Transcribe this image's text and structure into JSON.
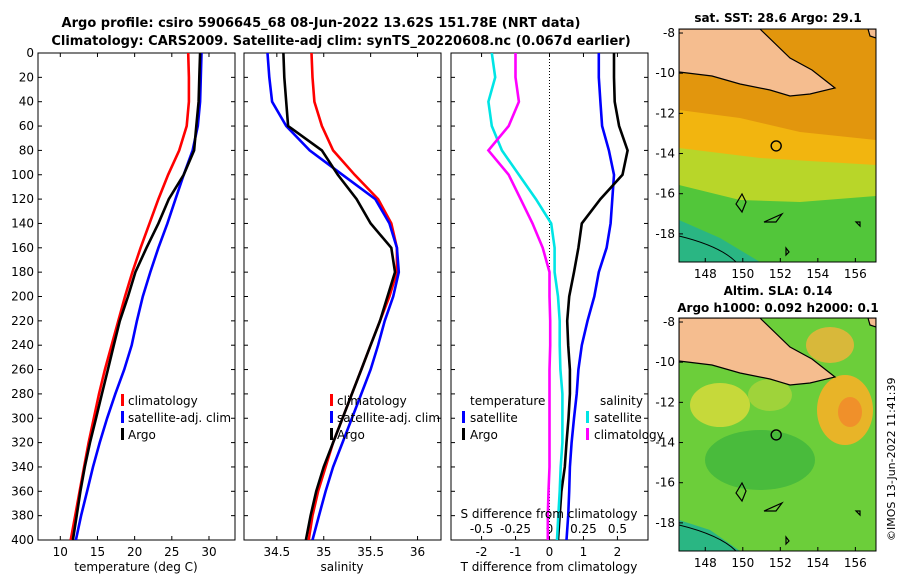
{
  "title": {
    "line1": "Argo profile: csiro 5906645_68 08-Jun-2022 13.62S 151.78E (NRT data)",
    "line2": "Climatology: CARS2009. Satellite-adj clim: synTS_20220608.nc (0.067d earlier)"
  },
  "watermark": "©IMOS 13-Jun-2022 11:41:39",
  "colors": {
    "climatology": "#ff0000",
    "satellite": "#0000ff",
    "argo": "#000000",
    "s_sat": "#00e5e5",
    "s_clim": "#ff00ff"
  },
  "chart_data": [
    {
      "type": "line",
      "name": "temperature",
      "xlabel": "temperature (deg C)",
      "ylabel": "",
      "xlim": [
        7,
        33.5
      ],
      "ylim": [
        0,
        400
      ],
      "xticks": [
        10,
        15,
        20,
        25,
        30
      ],
      "yticks": [
        0,
        20,
        40,
        60,
        80,
        100,
        120,
        140,
        160,
        180,
        200,
        220,
        240,
        260,
        280,
        300,
        320,
        340,
        360,
        380,
        400
      ],
      "legend": [
        "climatology",
        "satellite-adj. clim",
        "Argo"
      ],
      "series": [
        {
          "name": "climatology",
          "color": "#ff0000",
          "points": [
            [
              27.2,
              0
            ],
            [
              27.3,
              20
            ],
            [
              27.3,
              40
            ],
            [
              27.0,
              60
            ],
            [
              26.0,
              80
            ],
            [
              24.5,
              100
            ],
            [
              23.2,
              120
            ],
            [
              22.0,
              140
            ],
            [
              20.8,
              160
            ],
            [
              19.7,
              180
            ],
            [
              18.7,
              200
            ],
            [
              17.8,
              220
            ],
            [
              16.9,
              240
            ],
            [
              16.0,
              260
            ],
            [
              15.2,
              280
            ],
            [
              14.5,
              300
            ],
            [
              13.8,
              320
            ],
            [
              13.2,
              340
            ],
            [
              12.6,
              360
            ],
            [
              12.0,
              380
            ],
            [
              11.4,
              400
            ]
          ]
        },
        {
          "name": "satellite-adj. clim",
          "color": "#0000ff",
          "points": [
            [
              29.0,
              0
            ],
            [
              28.9,
              20
            ],
            [
              28.8,
              40
            ],
            [
              28.5,
              60
            ],
            [
              27.8,
              80
            ],
            [
              26.6,
              100
            ],
            [
              25.5,
              120
            ],
            [
              24.4,
              140
            ],
            [
              23.2,
              160
            ],
            [
              22.1,
              180
            ],
            [
              21.1,
              200
            ],
            [
              20.3,
              220
            ],
            [
              19.6,
              240
            ],
            [
              18.6,
              260
            ],
            [
              17.4,
              280
            ],
            [
              16.3,
              300
            ],
            [
              15.3,
              320
            ],
            [
              14.4,
              340
            ],
            [
              13.6,
              360
            ],
            [
              12.8,
              380
            ],
            [
              12.1,
              400
            ]
          ]
        },
        {
          "name": "Argo",
          "color": "#000000",
          "points": [
            [
              28.8,
              0
            ],
            [
              28.7,
              20
            ],
            [
              28.6,
              40
            ],
            [
              28.3,
              60
            ],
            [
              28.0,
              80
            ],
            [
              26.6,
              100
            ],
            [
              24.6,
              120
            ],
            [
              23.2,
              140
            ],
            [
              21.6,
              160
            ],
            [
              20.1,
              180
            ],
            [
              19.1,
              200
            ],
            [
              18.0,
              220
            ],
            [
              17.2,
              240
            ],
            [
              16.4,
              260
            ],
            [
              15.6,
              280
            ],
            [
              14.8,
              300
            ],
            [
              14.0,
              320
            ],
            [
              13.3,
              340
            ],
            [
              12.7,
              360
            ],
            [
              12.2,
              380
            ],
            [
              11.7,
              400
            ]
          ]
        }
      ]
    },
    {
      "type": "line",
      "name": "salinity",
      "xlabel": "salinity",
      "xlim": [
        34.15,
        36.25
      ],
      "ylim": [
        0,
        400
      ],
      "xticks": [
        34.5,
        35,
        35.5,
        36
      ],
      "legend": [
        "climatology",
        "satellite-adj. clim",
        "Argo"
      ],
      "series": [
        {
          "name": "climatology",
          "color": "#ff0000",
          "points": [
            [
              34.87,
              0
            ],
            [
              34.88,
              20
            ],
            [
              34.9,
              40
            ],
            [
              34.98,
              60
            ],
            [
              35.1,
              80
            ],
            [
              35.33,
              100
            ],
            [
              35.58,
              120
            ],
            [
              35.72,
              140
            ],
            [
              35.78,
              160
            ],
            [
              35.78,
              180
            ],
            [
              35.7,
              200
            ],
            [
              35.6,
              220
            ],
            [
              35.5,
              240
            ],
            [
              35.4,
              260
            ],
            [
              35.3,
              280
            ],
            [
              35.2,
              300
            ],
            [
              35.1,
              320
            ],
            [
              35.02,
              340
            ],
            [
              34.94,
              360
            ],
            [
              34.88,
              380
            ],
            [
              34.84,
              400
            ]
          ]
        },
        {
          "name": "satellite-adj. clim",
          "color": "#0000ff",
          "points": [
            [
              34.4,
              0
            ],
            [
              34.42,
              20
            ],
            [
              34.45,
              40
            ],
            [
              34.6,
              60
            ],
            [
              34.85,
              80
            ],
            [
              35.2,
              100
            ],
            [
              35.55,
              120
            ],
            [
              35.7,
              140
            ],
            [
              35.78,
              160
            ],
            [
              35.8,
              180
            ],
            [
              35.74,
              200
            ],
            [
              35.65,
              220
            ],
            [
              35.58,
              240
            ],
            [
              35.5,
              260
            ],
            [
              35.4,
              280
            ],
            [
              35.3,
              300
            ],
            [
              35.2,
              320
            ],
            [
              35.1,
              340
            ],
            [
              35.02,
              360
            ],
            [
              34.95,
              380
            ],
            [
              34.88,
              400
            ]
          ]
        },
        {
          "name": "Argo",
          "color": "#000000",
          "points": [
            [
              34.57,
              0
            ],
            [
              34.58,
              20
            ],
            [
              34.6,
              40
            ],
            [
              34.62,
              60
            ],
            [
              34.98,
              80
            ],
            [
              35.15,
              100
            ],
            [
              35.35,
              120
            ],
            [
              35.5,
              140
            ],
            [
              35.72,
              160
            ],
            [
              35.76,
              180
            ],
            [
              35.68,
              200
            ],
            [
              35.6,
              220
            ],
            [
              35.5,
              240
            ],
            [
              35.4,
              260
            ],
            [
              35.3,
              280
            ],
            [
              35.2,
              300
            ],
            [
              35.1,
              320
            ],
            [
              35.0,
              340
            ],
            [
              34.92,
              360
            ],
            [
              34.86,
              380
            ],
            [
              34.81,
              400
            ]
          ]
        }
      ]
    },
    {
      "type": "line",
      "name": "difference",
      "xlabel": "T difference from climatology",
      "toplabel": "S difference from climatology",
      "xlim": [
        -2.9,
        2.9
      ],
      "ylim": [
        0,
        400
      ],
      "xticks": [
        -2,
        -1,
        0,
        1,
        2
      ],
      "sticks": [
        "-0.5",
        "-0.25",
        "0",
        "0.25",
        "0.5"
      ],
      "legend_t": {
        "header": "temperature",
        "items": [
          "satellite",
          "Argo"
        ]
      },
      "legend_s": {
        "header": "salinity",
        "items": [
          "satellite",
          "climatology"
        ]
      },
      "series": [
        {
          "name": "temperature satellite",
          "color": "#0000ff",
          "points": [
            [
              1.45,
              0
            ],
            [
              1.45,
              20
            ],
            [
              1.5,
              40
            ],
            [
              1.55,
              60
            ],
            [
              1.75,
              80
            ],
            [
              1.9,
              100
            ],
            [
              1.85,
              120
            ],
            [
              1.8,
              140
            ],
            [
              1.68,
              160
            ],
            [
              1.45,
              180
            ],
            [
              1.32,
              200
            ],
            [
              1.12,
              220
            ],
            [
              0.95,
              240
            ],
            [
              0.85,
              260
            ],
            [
              0.8,
              280
            ],
            [
              0.72,
              300
            ],
            [
              0.65,
              320
            ],
            [
              0.6,
              340
            ],
            [
              0.58,
              360
            ],
            [
              0.55,
              380
            ],
            [
              0.5,
              400
            ]
          ]
        },
        {
          "name": "temperature Argo",
          "color": "#000000",
          "points": [
            [
              1.9,
              0
            ],
            [
              1.9,
              20
            ],
            [
              1.92,
              40
            ],
            [
              2.05,
              60
            ],
            [
              2.3,
              80
            ],
            [
              2.15,
              100
            ],
            [
              1.5,
              120
            ],
            [
              0.95,
              140
            ],
            [
              0.85,
              160
            ],
            [
              0.72,
              180
            ],
            [
              0.58,
              200
            ],
            [
              0.52,
              220
            ],
            [
              0.55,
              240
            ],
            [
              0.6,
              260
            ],
            [
              0.6,
              280
            ],
            [
              0.56,
              300
            ],
            [
              0.5,
              320
            ],
            [
              0.45,
              340
            ],
            [
              0.35,
              360
            ],
            [
              0.3,
              380
            ],
            [
              0.25,
              400
            ]
          ]
        },
        {
          "name": "salinity satellite",
          "color": "#00e5e5",
          "points": [
            [
              -1.7,
              0
            ],
            [
              -1.6,
              20
            ],
            [
              -1.8,
              40
            ],
            [
              -1.7,
              60
            ],
            [
              -1.4,
              80
            ],
            [
              -0.9,
              100
            ],
            [
              -0.4,
              120
            ],
            [
              0.05,
              140
            ],
            [
              0.15,
              160
            ],
            [
              0.15,
              180
            ],
            [
              0.25,
              200
            ],
            [
              0.3,
              220
            ],
            [
              0.3,
              240
            ],
            [
              0.32,
              260
            ],
            [
              0.38,
              280
            ],
            [
              0.38,
              300
            ],
            [
              0.38,
              320
            ],
            [
              0.33,
              340
            ],
            [
              0.3,
              360
            ],
            [
              0.26,
              380
            ],
            [
              0.22,
              400
            ]
          ]
        },
        {
          "name": "salinity climatology",
          "color": "#ff00ff",
          "points": [
            [
              -1.0,
              0
            ],
            [
              -1.0,
              20
            ],
            [
              -0.9,
              40
            ],
            [
              -1.2,
              60
            ],
            [
              -1.8,
              80
            ],
            [
              -1.2,
              100
            ],
            [
              -0.85,
              120
            ],
            [
              -0.5,
              140
            ],
            [
              -0.2,
              160
            ],
            [
              0.0,
              180
            ],
            [
              0.0,
              200
            ],
            [
              0.02,
              220
            ],
            [
              0.02,
              240
            ],
            [
              0.0,
              260
            ],
            [
              0.0,
              280
            ],
            [
              0.0,
              300
            ],
            [
              0.0,
              320
            ],
            [
              0.0,
              340
            ],
            [
              -0.03,
              360
            ],
            [
              -0.05,
              380
            ],
            [
              -0.05,
              400
            ]
          ]
        }
      ]
    },
    {
      "type": "heatmap",
      "name": "sst-map",
      "title": "sat. SST: 28.6 Argo: 29.1",
      "xticks": [
        "148",
        "150",
        "152",
        "154",
        "156"
      ],
      "yticks": [
        "-8",
        "-10",
        "-12",
        "-14",
        "-16",
        "-18"
      ],
      "xlim": [
        146.6,
        157.1
      ],
      "ylim": [
        -19.4,
        -7.8
      ],
      "marker": {
        "lon": 151.78,
        "lat": -13.62
      }
    },
    {
      "type": "heatmap",
      "name": "sla-map",
      "title1": "Altim. SLA: 0.14",
      "title2": "Argo h1000: 0.092 h2000: 0.1",
      "xticks": [
        "148",
        "150",
        "152",
        "154",
        "156"
      ],
      "yticks": [
        "-8",
        "-10",
        "-12",
        "-14",
        "-16",
        "-18"
      ],
      "xlim": [
        146.6,
        157.1
      ],
      "ylim": [
        -19.4,
        -7.8
      ],
      "marker": {
        "lon": 151.78,
        "lat": -13.62
      }
    }
  ]
}
